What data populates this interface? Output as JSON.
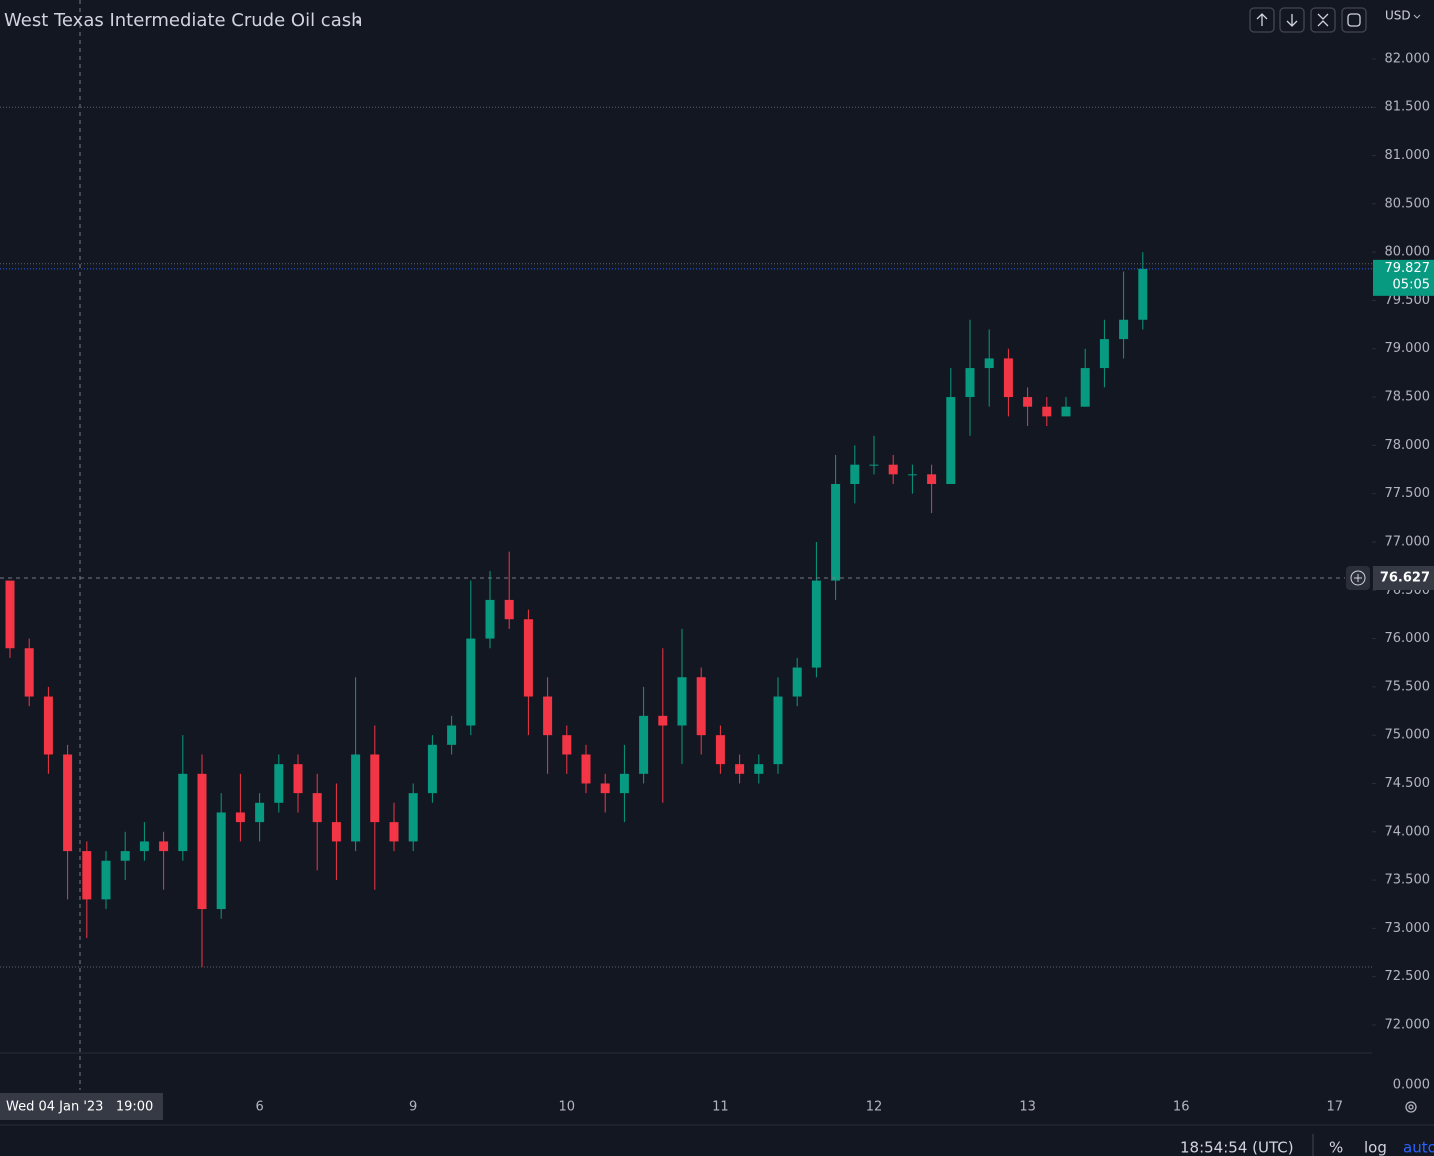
{
  "chart_data": {
    "type": "candlestick",
    "title": "West Texas Intermediate Crude Oil cash",
    "currency": "USD",
    "categories": [
      null,
      null,
      null,
      null,
      null,
      null,
      null,
      null,
      null,
      null,
      null,
      null,
      null,
      "6",
      null,
      null,
      null,
      null,
      null,
      null,
      null,
      "9",
      null,
      null,
      null,
      null,
      null,
      null,
      null,
      "10",
      null,
      null,
      null,
      null,
      null,
      null,
      null,
      "11",
      null,
      null,
      null,
      null,
      null,
      null,
      null,
      "12",
      null,
      null,
      null,
      null,
      null,
      null,
      null,
      "13",
      null,
      null,
      null,
      null,
      null,
      null,
      null,
      "16",
      null,
      null,
      null,
      null,
      null,
      null,
      null,
      "17"
    ],
    "open": [
      76.6,
      75.9,
      75.4,
      74.8,
      73.8,
      73.3,
      73.7,
      73.8,
      73.9,
      73.8,
      74.6,
      73.2,
      74.2,
      74.1,
      74.3,
      74.7,
      74.4,
      74.1,
      73.9,
      74.8,
      74.1,
      73.9,
      74.4,
      74.9,
      75.1,
      76.0,
      76.4,
      76.2,
      75.4,
      75.0,
      74.8,
      74.5,
      74.4,
      74.6,
      75.2,
      75.1,
      75.6,
      75.0,
      74.7,
      74.6,
      74.7,
      75.4,
      75.7,
      76.6,
      77.6,
      77.8,
      77.8,
      77.7,
      77.7,
      77.6,
      78.5,
      78.8,
      78.9,
      78.5,
      78.4,
      78.3,
      78.4,
      78.8,
      79.1,
      79.3,
      null,
      null,
      null,
      null,
      null,
      null,
      null,
      null,
      null,
      null
    ],
    "high": [
      76.6,
      76.0,
      75.5,
      74.9,
      73.9,
      73.8,
      74.0,
      74.1,
      74.0,
      75.0,
      74.8,
      74.4,
      74.6,
      74.4,
      74.8,
      74.8,
      74.6,
      74.5,
      75.6,
      75.1,
      74.3,
      74.5,
      75.0,
      75.2,
      76.6,
      76.7,
      76.9,
      76.3,
      75.6,
      75.1,
      74.9,
      74.6,
      74.9,
      75.5,
      75.9,
      76.1,
      75.7,
      75.1,
      74.8,
      74.8,
      75.6,
      75.8,
      77.0,
      77.9,
      78.0,
      78.1,
      77.9,
      77.8,
      77.8,
      78.8,
      79.3,
      79.2,
      79.0,
      78.6,
      78.5,
      78.5,
      79.0,
      79.3,
      79.8,
      80.0,
      null,
      null,
      null,
      null,
      null,
      null,
      null,
      null,
      null,
      null
    ],
    "low": [
      75.8,
      75.3,
      74.6,
      73.3,
      72.9,
      73.2,
      73.5,
      73.7,
      73.4,
      73.7,
      72.6,
      73.1,
      73.9,
      73.9,
      74.2,
      74.2,
      73.6,
      73.5,
      73.8,
      73.4,
      73.8,
      73.8,
      74.3,
      74.8,
      75.0,
      75.9,
      76.1,
      75.0,
      74.6,
      74.6,
      74.4,
      74.2,
      74.1,
      74.5,
      74.3,
      74.7,
      74.8,
      74.6,
      74.5,
      74.5,
      74.6,
      75.3,
      75.6,
      76.4,
      77.4,
      77.7,
      77.6,
      77.5,
      77.3,
      77.6,
      78.1,
      78.4,
      78.3,
      78.2,
      78.2,
      78.3,
      78.4,
      78.6,
      78.9,
      79.2,
      null,
      null,
      null,
      null,
      null,
      null,
      null,
      null,
      null,
      null
    ],
    "close": [
      75.9,
      75.4,
      74.8,
      73.8,
      73.3,
      73.7,
      73.8,
      73.9,
      73.8,
      74.6,
      73.2,
      74.2,
      74.1,
      74.3,
      74.7,
      74.4,
      74.1,
      73.9,
      74.8,
      74.1,
      73.9,
      74.4,
      74.9,
      75.1,
      76.0,
      76.4,
      76.2,
      75.4,
      75.0,
      74.8,
      74.5,
      74.4,
      74.6,
      75.2,
      75.1,
      75.6,
      75.0,
      74.7,
      74.6,
      74.7,
      75.4,
      75.7,
      76.6,
      77.6,
      77.8,
      77.8,
      77.7,
      77.7,
      77.6,
      78.5,
      78.8,
      78.9,
      78.5,
      78.4,
      78.3,
      78.4,
      78.8,
      79.1,
      79.3,
      79.827,
      null,
      null,
      null,
      null,
      null,
      null,
      null,
      null,
      null,
      null
    ],
    "up_color": "#089981",
    "down_color": "#f23645",
    "ylim": [
      71.71,
      82.61
    ],
    "yticks": [
      {
        "value": 72,
        "label": "72.000"
      },
      {
        "value": 72.5,
        "label": "72.500"
      },
      {
        "value": 73,
        "label": "73.000"
      },
      {
        "value": 73.5,
        "label": "73.500"
      },
      {
        "value": 74,
        "label": "74.000"
      },
      {
        "value": 74.5,
        "label": "74.500"
      },
      {
        "value": 75,
        "label": "75.000"
      },
      {
        "value": 75.5,
        "label": "75.500"
      },
      {
        "value": 76,
        "label": "76.000"
      },
      {
        "value": 76.5,
        "label": "76.500"
      },
      {
        "value": 77,
        "label": "77.000"
      },
      {
        "value": 77.5,
        "label": "77.500"
      },
      {
        "value": 78,
        "label": "78.000"
      },
      {
        "value": 78.5,
        "label": "78.500"
      },
      {
        "value": 79,
        "label": "79.000"
      },
      {
        "value": 79.5,
        "label": "79.500"
      },
      {
        "value": 80,
        "label": "80.000"
      },
      {
        "value": 80.5,
        "label": "80.500"
      },
      {
        "value": 81,
        "label": "81.000"
      },
      {
        "value": 81.5,
        "label": "81.500"
      },
      {
        "value": 82,
        "label": "82.000"
      }
    ],
    "horizontal_lines": [
      81.5,
      79.88,
      72.6
    ],
    "last_price": 79.827,
    "countdown": "05:05",
    "crosshair_price": 76.627,
    "crosshair_label": "Wed 04 Jan '23   19:00",
    "volume_scale_label": "0.000",
    "clock": "18:54:54 (UTC)",
    "percent_label": "%",
    "log_label": "log",
    "auto_label": "auto"
  }
}
